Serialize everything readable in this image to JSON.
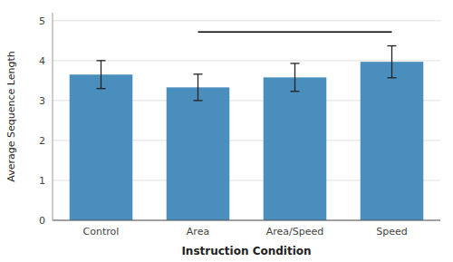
{
  "chart_data": {
    "type": "bar",
    "categories": [
      "Control",
      "Area",
      "Area/Speed",
      "Speed"
    ],
    "values": [
      3.65,
      3.33,
      3.58,
      3.97
    ],
    "errors": [
      0.35,
      0.33,
      0.35,
      0.4
    ],
    "color": "#4A8EBD",
    "xlabel": "Instruction Condition",
    "ylabel": "Average Sequence Length",
    "ylim": [
      0,
      5.2
    ],
    "yticks": [
      0,
      1,
      2,
      3,
      4,
      5
    ],
    "grid": true,
    "significance_bar": {
      "y": 4.72,
      "from": "Area",
      "to": "Speed"
    }
  }
}
